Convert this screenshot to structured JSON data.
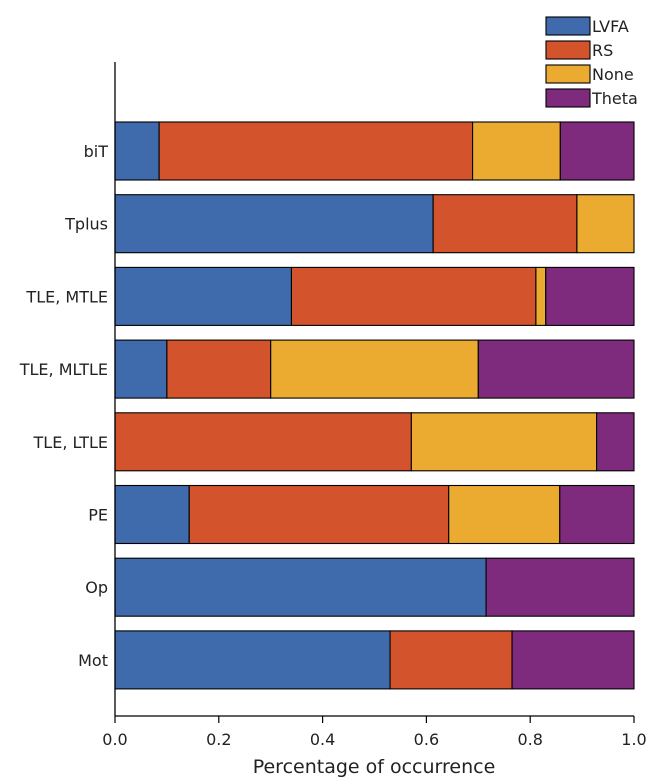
{
  "chart_data": {
    "type": "bar",
    "orientation": "horizontal",
    "stacked": true,
    "categories": [
      "biT",
      "Tplus",
      "TLE, MTLE",
      "TLE, MLTLE",
      "TLE, LTLE",
      "PE",
      "Op",
      "Mot"
    ],
    "series": [
      {
        "name": "LVFA",
        "color": "#3f6aab",
        "values": [
          0.085,
          0.613,
          0.34,
          0.1,
          0.0,
          0.143,
          0.715,
          0.53
        ]
      },
      {
        "name": "RS",
        "color": "#d3532c",
        "values": [
          0.604,
          0.277,
          0.471,
          0.2,
          0.571,
          0.5,
          0.0,
          0.235
        ]
      },
      {
        "name": "None",
        "color": "#ebab30",
        "values": [
          0.169,
          0.11,
          0.019,
          0.4,
          0.357,
          0.214,
          0.0,
          0.0
        ]
      },
      {
        "name": "Theta",
        "color": "#7e2b7e",
        "values": [
          0.142,
          0.0,
          0.17,
          0.3,
          0.072,
          0.143,
          0.285,
          0.235
        ]
      }
    ],
    "xlabel": "Percentage of occurrence",
    "ylabel": "",
    "xlim": [
      0,
      1
    ],
    "xticks": [
      "0.0",
      "0.2",
      "0.4",
      "0.6",
      "0.8",
      "1.0"
    ],
    "grid": false,
    "legend_position": "top-right"
  }
}
